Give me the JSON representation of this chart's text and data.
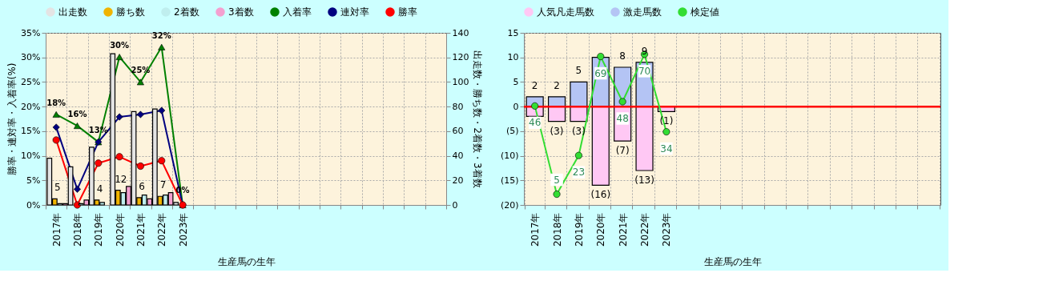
{
  "chart_data": [
    {
      "type": "bar",
      "xlabel": "生産馬の生年",
      "ylabel": "勝率・連対率・入着率(%)",
      "y2label": "出走数・勝ち数・2着数・3着数",
      "legend": "top",
      "grid": true,
      "categories": [
        "2017年",
        "2018年",
        "2019年",
        "2020年",
        "2021年",
        "2022年",
        "2023年",
        null,
        null,
        null,
        null,
        null,
        null,
        null,
        null,
        null,
        null,
        null,
        null
      ],
      "ylim": [
        0,
        35
      ],
      "yticks": [
        {
          "value": 0,
          "label": "0%"
        },
        {
          "value": 5,
          "label": "5%"
        },
        {
          "value": 10,
          "label": "10%"
        },
        {
          "value": 15,
          "label": "15%"
        },
        {
          "value": 20,
          "label": "20%"
        },
        {
          "value": 25,
          "label": "25%"
        },
        {
          "value": 30,
          "label": "30%"
        },
        {
          "value": 35,
          "label": "35%"
        }
      ],
      "y2lim": [
        0,
        140
      ],
      "y2ticks": [
        0,
        20,
        40,
        60,
        80,
        100,
        120,
        140
      ],
      "series": [
        {
          "name": "出走数",
          "color": "#e4e4e4",
          "axis": "y2",
          "values": [
            38,
            31,
            47,
            123,
            76,
            78,
            2,
            null,
            null,
            null,
            null,
            null,
            null,
            null,
            null,
            null,
            null,
            null,
            null
          ]
        },
        {
          "name": "勝ち数",
          "color": "#f0b400",
          "axis": "y2",
          "values": [
            5,
            0,
            4,
            12,
            6,
            7,
            0,
            null,
            null,
            null,
            null,
            null,
            null,
            null,
            null,
            null,
            null,
            null,
            null
          ],
          "value_labels": [
            "5",
            null,
            "4",
            "12",
            "6",
            "7",
            null,
            null,
            null,
            null,
            null,
            null,
            null,
            null,
            null,
            null,
            null,
            null,
            null
          ]
        },
        {
          "name": "2着数",
          "color": "#bfeeee",
          "axis": "y2",
          "values": [
            1,
            1,
            2,
            10,
            8,
            8,
            0,
            null,
            null,
            null,
            null,
            null,
            null,
            null,
            null,
            null,
            null,
            null,
            null
          ]
        },
        {
          "name": "3着数",
          "color": "#f4a0d0",
          "axis": "y2",
          "values": [
            1,
            4,
            0,
            15,
            5,
            10,
            0,
            null,
            null,
            null,
            null,
            null,
            null,
            null,
            null,
            null,
            null,
            null,
            null
          ]
        },
        {
          "name": "入着率",
          "type": "line",
          "color": "#008000",
          "marker": "triangle",
          "axis": "y",
          "values": [
            18.4,
            16.1,
            12.8,
            30.1,
            25.0,
            32.1,
            0,
            null,
            null,
            null,
            null,
            null,
            null,
            null,
            null,
            null,
            null,
            null,
            null
          ],
          "value_labels": [
            "18%",
            "16%",
            "13%",
            "30%",
            "25%",
            "32%",
            "0%",
            null,
            null,
            null,
            null,
            null,
            null,
            null,
            null,
            null,
            null,
            null,
            null
          ]
        },
        {
          "name": "連対率",
          "type": "line",
          "color": "#000080",
          "marker": "diamond",
          "axis": "y",
          "values": [
            15.8,
            3.2,
            12.8,
            17.9,
            18.4,
            19.2,
            0,
            null,
            null,
            null,
            null,
            null,
            null,
            null,
            null,
            null,
            null,
            null,
            null
          ]
        },
        {
          "name": "勝率",
          "type": "line",
          "color": "#ff0000",
          "marker": "circle",
          "axis": "y",
          "values": [
            13.2,
            0,
            8.5,
            9.8,
            7.9,
            9.0,
            0,
            null,
            null,
            null,
            null,
            null,
            null,
            null,
            null,
            null,
            null,
            null,
            null
          ]
        }
      ]
    },
    {
      "type": "bar",
      "xlabel": "生産馬の生年",
      "legend": "top",
      "grid": true,
      "tick_labels": "xy",
      "categories": [
        "2017年",
        "2018年",
        "2019年",
        "2020年",
        "2021年",
        "2022年",
        "2023年",
        null,
        null,
        null,
        null,
        null,
        null,
        null,
        null,
        null,
        null,
        null,
        null
      ],
      "ylim": [
        -20,
        15
      ],
      "yticks": [
        {
          "value": -20,
          "label": "(20)"
        },
        {
          "value": -15,
          "label": "(15)"
        },
        {
          "value": -10,
          "label": "(10)"
        },
        {
          "value": -5,
          "label": "(5)"
        },
        0,
        5,
        10,
        15
      ],
      "y2lim": [
        0,
        80
      ],
      "ref_lines": [
        {
          "axis": "y",
          "value": 0,
          "color": "#ff0000"
        }
      ],
      "series": [
        {
          "name": "人気凡走馬数",
          "color": "#ffc8f4",
          "axis": "y",
          "values": [
            -2,
            -3,
            -3,
            -16,
            -7,
            -13,
            -1,
            null,
            null,
            null,
            null,
            null,
            null,
            null,
            null,
            null,
            null,
            null,
            null
          ],
          "value_labels": [
            null,
            "(3)",
            "(3)",
            "(16)",
            "(7)",
            "(13)",
            "(1)",
            null,
            null,
            null,
            null,
            null,
            null,
            null,
            null,
            null,
            null,
            null,
            null
          ]
        },
        {
          "name": "激走馬数",
          "color": "#b4c4f4",
          "axis": "y",
          "values": [
            2,
            2,
            5,
            10,
            8,
            9,
            0,
            null,
            null,
            null,
            null,
            null,
            null,
            null,
            null,
            null,
            null,
            null,
            null
          ],
          "value_labels": [
            "2",
            "2",
            "5",
            null,
            "8",
            "9",
            null,
            null,
            null,
            null,
            null,
            null,
            null,
            null,
            null,
            null,
            null,
            null,
            null
          ]
        },
        {
          "name": "検定値",
          "type": "line",
          "color": "#33dd33",
          "marker": "circle",
          "axis": "y2",
          "values": [
            46,
            5,
            23,
            69,
            48,
            70,
            34,
            null,
            null,
            null,
            null,
            null,
            null,
            null,
            null,
            null,
            null,
            null,
            null
          ],
          "value_labels": [
            "46",
            "5",
            "23",
            "69",
            "48",
            "70",
            "34",
            null,
            null,
            null,
            null,
            null,
            null,
            null,
            null,
            null,
            null,
            null,
            null
          ]
        }
      ]
    }
  ]
}
